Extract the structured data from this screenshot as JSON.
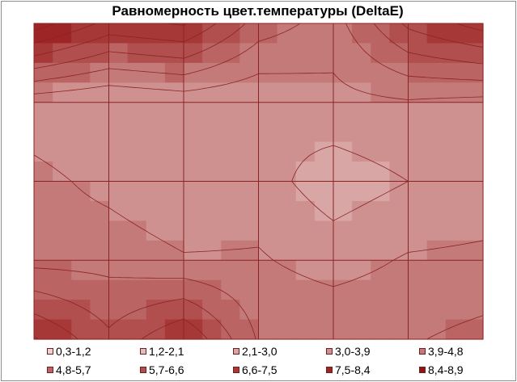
{
  "chart_data": {
    "type": "heatmap",
    "title": "Равномерность цвет.температуры (DeltaE)",
    "xlabel": "",
    "ylabel": "",
    "grid": {
      "columns": 6,
      "rows": 4
    },
    "legend_position": "bottom",
    "levels": [
      {
        "label": "0,3-1,2",
        "color": "#ecd2d2"
      },
      {
        "label": "1,2-2,1",
        "color": "#e3bcbc"
      },
      {
        "label": "2,1-3,0",
        "color": "#d9a6a6"
      },
      {
        "label": "3,0-3,9",
        "color": "#cf9090"
      },
      {
        "label": "3,9-4,8",
        "color": "#c57a7a"
      },
      {
        "label": "4,8-5,7",
        "color": "#bb6464"
      },
      {
        "label": "5,7-6,6",
        "color": "#b14e4e"
      },
      {
        "label": "6,6-7,5",
        "color": "#a73838"
      },
      {
        "label": "7,5-8,4",
        "color": "#9d2525"
      },
      {
        "label": "8,4-8,9",
        "color": "#8f1616"
      }
    ],
    "values": [
      [
        8.9,
        7.2,
        7.6,
        5.3,
        4.4,
        6.8,
        7.9
      ],
      [
        3.3,
        3.0,
        3.3,
        3.1,
        3.6,
        3.8,
        3.6
      ],
      [
        4.2,
        3.6,
        3.0,
        3.4,
        2.5,
        3.0,
        3.3
      ],
      [
        4.5,
        4.5,
        4.0,
        4.0,
        3.5,
        4.0,
        4.1
      ],
      [
        7.6,
        5.9,
        7.5,
        4.7,
        4.7,
        4.7,
        5.1
      ]
    ],
    "colors": {
      "gridline": "#8b2323",
      "contour": "#8b2323"
    }
  }
}
